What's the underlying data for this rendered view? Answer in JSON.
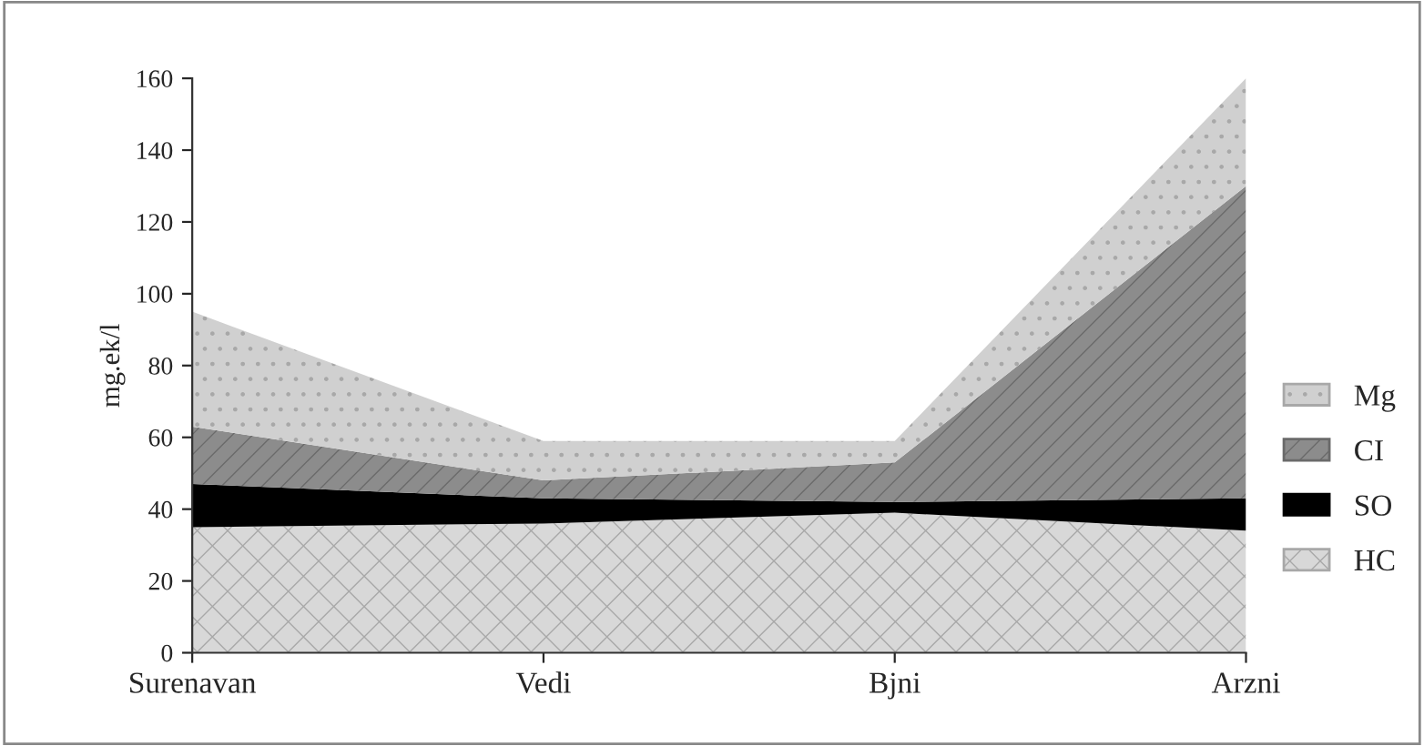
{
  "chart_data": {
    "type": "area",
    "stacked": true,
    "ylabel": "mg.ek/l",
    "categories": [
      "Surenavan",
      "Vedi",
      "Bjni",
      "Arzni"
    ],
    "series": [
      {
        "name": "HC",
        "color": "#d8d8d8",
        "values": [
          35,
          36,
          39,
          34
        ]
      },
      {
        "name": "SO",
        "color": "#000000",
        "values": [
          12,
          7,
          3,
          9
        ]
      },
      {
        "name": "CI",
        "color": "#8c8c8c",
        "values": [
          16,
          5,
          11,
          87
        ]
      },
      {
        "name": "Mg",
        "color": "#d0d0d0",
        "values": [
          32,
          11,
          6,
          30
        ]
      }
    ],
    "ylim": [
      0,
      160
    ],
    "yticks": [
      0,
      20,
      40,
      60,
      80,
      100,
      120,
      140,
      160
    ],
    "grid": false,
    "legend": "right"
  }
}
